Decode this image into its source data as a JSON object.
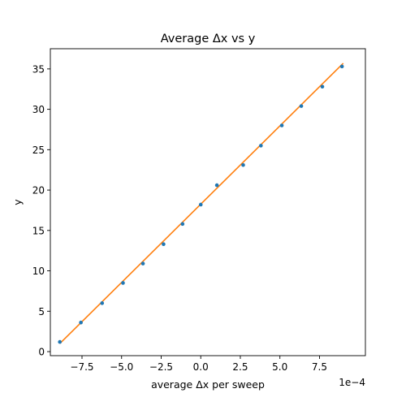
{
  "chart_data": {
    "type": "scatter",
    "title": "Average Δx vs y",
    "xlabel": "average Δx per sweep",
    "ylabel": "y",
    "x_offset_label": "1e−4",
    "xlim": [
      -0.00095,
      0.00104
    ],
    "ylim": [
      -0.5,
      37.5
    ],
    "grid": false,
    "x_ticks": [
      {
        "value": -0.00075,
        "label": "−7.5"
      },
      {
        "value": -0.0005,
        "label": "−5.0"
      },
      {
        "value": -0.00025,
        "label": "−2.5"
      },
      {
        "value": 0.0,
        "label": "0.0"
      },
      {
        "value": 0.00025,
        "label": "2.5"
      },
      {
        "value": 0.0005,
        "label": "5.0"
      },
      {
        "value": 0.00075,
        "label": "7.5"
      }
    ],
    "y_ticks": [
      {
        "value": 0,
        "label": "0"
      },
      {
        "value": 5,
        "label": "5"
      },
      {
        "value": 10,
        "label": "10"
      },
      {
        "value": 15,
        "label": "15"
      },
      {
        "value": 20,
        "label": "20"
      },
      {
        "value": 25,
        "label": "25"
      },
      {
        "value": 30,
        "label": "30"
      },
      {
        "value": 35,
        "label": "35"
      }
    ],
    "series": [
      {
        "kind": "scatter",
        "color": "#1f77b4",
        "x": [
          -0.00089,
          -0.000757,
          -0.000623,
          -0.000491,
          -0.000365,
          -0.000235,
          -0.000115,
          0.0,
          0.000102,
          0.000268,
          0.00038,
          0.000512,
          0.000635,
          0.000768,
          0.000892
        ],
        "y": [
          1.2,
          3.6,
          6.0,
          8.5,
          10.9,
          13.3,
          15.8,
          18.2,
          20.6,
          23.1,
          25.5,
          28.0,
          30.4,
          32.8,
          35.3
        ]
      },
      {
        "kind": "line",
        "color": "#ff7f0e",
        "x": [
          -0.00089,
          0.0009
        ],
        "y": [
          1.0,
          35.7
        ]
      }
    ]
  }
}
